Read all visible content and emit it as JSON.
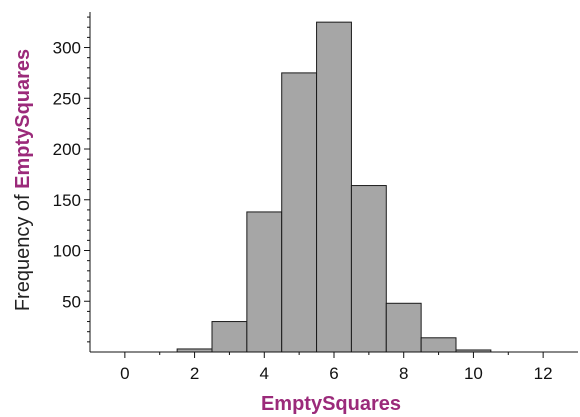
{
  "chart_data": {
    "type": "bar",
    "title": "",
    "xlabel": "EmptySquares",
    "ylabel_prefix": "Frequency of ",
    "ylabel_variable": "EmptySquares",
    "bin_width": 1,
    "bins": [
      {
        "x": 0,
        "count": 0
      },
      {
        "x": 1,
        "count": 0
      },
      {
        "x": 2,
        "count": 3
      },
      {
        "x": 3,
        "count": 30
      },
      {
        "x": 4,
        "count": 138
      },
      {
        "x": 5,
        "count": 275
      },
      {
        "x": 6,
        "count": 325
      },
      {
        "x": 7,
        "count": 164
      },
      {
        "x": 8,
        "count": 48
      },
      {
        "x": 9,
        "count": 14
      },
      {
        "x": 10,
        "count": 2
      },
      {
        "x": 11,
        "count": 0
      },
      {
        "x": 12,
        "count": 0
      }
    ],
    "xticks": [
      "0",
      "2",
      "4",
      "6",
      "8",
      "10",
      "12"
    ],
    "yticks": [
      "50",
      "100",
      "150",
      "200",
      "250",
      "300"
    ],
    "xlim": [
      -1,
      13
    ],
    "ylim": [
      0,
      335
    ],
    "grid": false,
    "colors": {
      "bar_fill": "#a6a6a6",
      "bar_stroke": "#1a1a1a",
      "variable_label": "#9b2a7a"
    }
  }
}
